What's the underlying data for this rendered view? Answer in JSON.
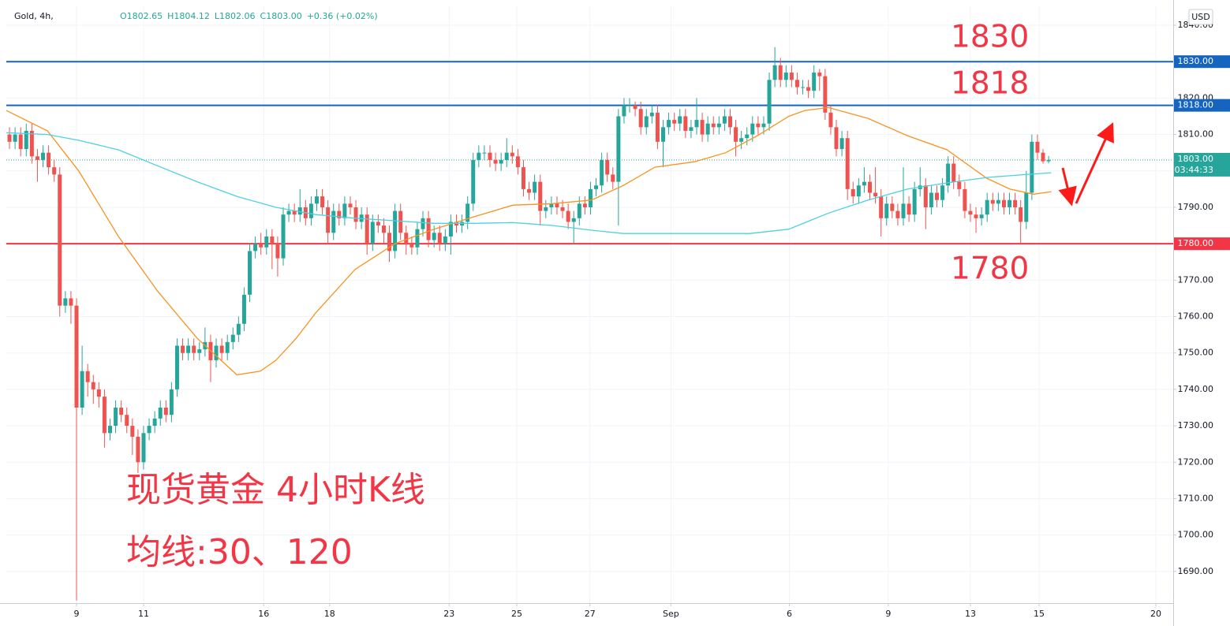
{
  "chart_data": {
    "type": "candlestick",
    "symbol": "Gold, 4h,",
    "ohlc_header": [
      "O1802.65",
      "H1804.12",
      "L1802.06",
      "C1803.00",
      "+0.36 (+0.02%)"
    ],
    "currency": "USD",
    "up_color": "#26a69a",
    "down_color": "#ef5350",
    "x": [
      -12,
      -11,
      -10,
      -9,
      -8,
      -7,
      -6,
      -5,
      -4,
      -3,
      -2,
      -1,
      0,
      1,
      2,
      3,
      4,
      5,
      6,
      7,
      8,
      9,
      10,
      11,
      12,
      13,
      14,
      15,
      16,
      17,
      18,
      19,
      20,
      21,
      22,
      23,
      24,
      25,
      26,
      27,
      28,
      29,
      30,
      31,
      32,
      33,
      34,
      35,
      36,
      37,
      38,
      39,
      40,
      41,
      42,
      43,
      44,
      45,
      46,
      47,
      48,
      49,
      50,
      51,
      52,
      53,
      54,
      55,
      56,
      57,
      58,
      59,
      60,
      61,
      62,
      63,
      64,
      65,
      66,
      67,
      68,
      69,
      70,
      71,
      72,
      73,
      74,
      75,
      76,
      77,
      78,
      79,
      80,
      81,
      82,
      83,
      84,
      85,
      86,
      87,
      88,
      89,
      90,
      91,
      92,
      93,
      94,
      95,
      96,
      97,
      98,
      99,
      100,
      101,
      102,
      103,
      104,
      105,
      106,
      107,
      108,
      109,
      110,
      111,
      112,
      113,
      114,
      115,
      116,
      117,
      118,
      119,
      120,
      121,
      122,
      123,
      124,
      125,
      126,
      127,
      128,
      129,
      130,
      131,
      132,
      133,
      134,
      135,
      136,
      137,
      138,
      139,
      140,
      141,
      142,
      143,
      144,
      145,
      146,
      147,
      148,
      149,
      150,
      151,
      152,
      153,
      154,
      155,
      156,
      157,
      158,
      159,
      160,
      161,
      162,
      163,
      164,
      165,
      166,
      167,
      168,
      169,
      170,
      171,
      172,
      173,
      174
    ],
    "open": [
      1810,
      1808,
      1810,
      1806,
      1811,
      1804,
      1803,
      1805,
      1801,
      1799,
      1763,
      1765,
      1763,
      1735,
      1745,
      1742,
      1740,
      1738,
      1728,
      1730,
      1735,
      1733,
      1730,
      1727,
      1720,
      1728,
      1730,
      1732,
      1735,
      1733,
      1740,
      1752,
      1750,
      1752,
      1750,
      1751,
      1753,
      1748,
      1752,
      1750,
      1753,
      1755,
      1758,
      1766,
      1778,
      1780,
      1779,
      1782,
      1780,
      1776,
      1788,
      1789,
      1788,
      1790,
      1787,
      1791,
      1793,
      1790,
      1783,
      1789,
      1787,
      1791,
      1790,
      1786,
      1788,
      1780,
      1786,
      1785,
      1783,
      1778,
      1789,
      1783,
      1780,
      1779,
      1784,
      1787,
      1781,
      1783,
      1780,
      1782,
      1786,
      1785,
      1786,
      1791,
      1803,
      1805,
      1805,
      1803,
      1802,
      1803,
      1805,
      1804,
      1801,
      1795,
      1794,
      1797,
      1789,
      1790,
      1791,
      1790,
      1789,
      1786,
      1787,
      1791,
      1790,
      1795,
      1796,
      1803,
      1799,
      1797,
      1815,
      1818,
      1818,
      1817,
      1812,
      1815,
      1816,
      1808,
      1812,
      1814,
      1813,
      1815,
      1811,
      1812,
      1814,
      1810,
      1813,
      1812,
      1813,
      1815,
      1812,
      1808,
      1809,
      1810,
      1813,
      1812,
      1813,
      1825,
      1829,
      1825,
      1827,
      1825,
      1823,
      1823,
      1822,
      1827,
      1826,
      1816,
      1812,
      1806,
      1809,
      1795,
      1793,
      1796,
      1797,
      1794,
      1793,
      1787,
      1791,
      1789,
      1787,
      1791,
      1788,
      1795,
      1796,
      1790,
      1794,
      1792,
      1796,
      1802,
      1797,
      1795,
      1789,
      1788,
      1787,
      1788,
      1792,
      1791,
      1792,
      1790,
      1792,
      1790,
      1786,
      1794,
      1808,
      1805,
      1802.65
    ],
    "high": [
      1812,
      1812,
      1812,
      1813,
      1813,
      1806,
      1807,
      1807,
      1803,
      1801,
      1767,
      1767,
      1765,
      1752,
      1747,
      1744,
      1742,
      1740,
      1732,
      1737,
      1737,
      1735,
      1732,
      1729,
      1730,
      1732,
      1734,
      1737,
      1737,
      1742,
      1754,
      1754,
      1754,
      1754,
      1753,
      1757,
      1755,
      1754,
      1754,
      1755,
      1757,
      1760,
      1768,
      1780,
      1782,
      1783,
      1784,
      1784,
      1782,
      1790,
      1791,
      1791,
      1795,
      1792,
      1793,
      1795,
      1795,
      1792,
      1791,
      1791,
      1793,
      1793,
      1792,
      1790,
      1790,
      1788,
      1788,
      1787,
      1785,
      1791,
      1791,
      1785,
      1782,
      1786,
      1789,
      1789,
      1785,
      1785,
      1784,
      1788,
      1788,
      1788,
      1793,
      1805,
      1807,
      1807,
      1807,
      1805,
      1805,
      1809,
      1807,
      1806,
      1803,
      1797,
      1799,
      1799,
      1792,
      1793,
      1793,
      1792,
      1791,
      1789,
      1793,
      1793,
      1797,
      1798,
      1805,
      1805,
      1801,
      1817,
      1820,
      1820,
      1819,
      1819,
      1817,
      1818,
      1818,
      1814,
      1816,
      1816,
      1817,
      1817,
      1814,
      1820,
      1816,
      1815,
      1815,
      1815,
      1817,
      1817,
      1814,
      1811,
      1812,
      1815,
      1815,
      1815,
      1827,
      1834,
      1831,
      1829,
      1829,
      1827,
      1825,
      1825,
      1829,
      1828,
      1828,
      1818,
      1814,
      1811,
      1811,
      1797,
      1798,
      1801,
      1799,
      1801,
      1795,
      1793,
      1793,
      1791,
      1801,
      1793,
      1797,
      1801,
      1798,
      1796,
      1796,
      1798,
      1804,
      1804,
      1799,
      1797,
      1791,
      1790,
      1790,
      1794,
      1794,
      1794,
      1794,
      1794,
      1794,
      1792,
      1800,
      1810,
      1810,
      1806,
      1804.12
    ],
    "low": [
      1806,
      1806,
      1804,
      1804,
      1802,
      1797,
      1801,
      1799,
      1797,
      1760,
      1761,
      1758,
      1682,
      1733,
      1738,
      1736,
      1735,
      1724,
      1726,
      1728,
      1731,
      1728,
      1722,
      1717,
      1718,
      1726,
      1728,
      1730,
      1731,
      1731,
      1738,
      1748,
      1748,
      1748,
      1748,
      1749,
      1742,
      1746,
      1748,
      1748,
      1751,
      1753,
      1756,
      1764,
      1776,
      1777,
      1777,
      1773,
      1771,
      1774,
      1786,
      1786,
      1786,
      1785,
      1785,
      1789,
      1788,
      1780,
      1781,
      1785,
      1785,
      1788,
      1784,
      1784,
      1777,
      1778,
      1783,
      1780,
      1775,
      1776,
      1781,
      1777,
      1777,
      1777,
      1782,
      1779,
      1779,
      1778,
      1778,
      1777,
      1783,
      1783,
      1784,
      1789,
      1801,
      1803,
      1801,
      1800,
      1800,
      1801,
      1802,
      1799,
      1793,
      1792,
      1792,
      1785,
      1787,
      1788,
      1788,
      1787,
      1784,
      1780,
      1785,
      1788,
      1788,
      1793,
      1794,
      1797,
      1795,
      1785,
      1813,
      1816,
      1815,
      1810,
      1810,
      1813,
      1806,
      1801,
      1810,
      1811,
      1811,
      1809,
      1809,
      1810,
      1808,
      1808,
      1810,
      1810,
      1811,
      1810,
      1804,
      1806,
      1807,
      1808,
      1810,
      1810,
      1811,
      1823,
      1823,
      1823,
      1823,
      1821,
      1821,
      1820,
      1820,
      1822,
      1814,
      1810,
      1804,
      1804,
      1792,
      1791,
      1791,
      1794,
      1792,
      1791,
      1782,
      1785,
      1787,
      1785,
      1785,
      1786,
      1786,
      1793,
      1784,
      1788,
      1790,
      1790,
      1794,
      1795,
      1793,
      1787,
      1786,
      1783,
      1785,
      1786,
      1789,
      1789,
      1788,
      1788,
      1788,
      1780,
      1784,
      1792,
      1803,
      1802,
      1802.06
    ],
    "close": [
      1808,
      1810,
      1806,
      1811,
      1804,
      1803,
      1805,
      1801,
      1799,
      1763,
      1765,
      1763,
      1735,
      1745,
      1742,
      1740,
      1738,
      1728,
      1730,
      1735,
      1733,
      1730,
      1727,
      1720,
      1728,
      1730,
      1732,
      1735,
      1733,
      1740,
      1752,
      1750,
      1752,
      1750,
      1751,
      1753,
      1748,
      1752,
      1750,
      1753,
      1755,
      1758,
      1766,
      1778,
      1780,
      1779,
      1782,
      1780,
      1776,
      1788,
      1789,
      1788,
      1790,
      1787,
      1791,
      1793,
      1790,
      1783,
      1789,
      1787,
      1791,
      1790,
      1786,
      1788,
      1780,
      1786,
      1785,
      1783,
      1778,
      1789,
      1783,
      1780,
      1779,
      1784,
      1787,
      1781,
      1783,
      1780,
      1782,
      1786,
      1785,
      1786,
      1791,
      1803,
      1805,
      1805,
      1803,
      1802,
      1803,
      1805,
      1804,
      1801,
      1795,
      1794,
      1797,
      1789,
      1790,
      1791,
      1790,
      1789,
      1786,
      1787,
      1791,
      1790,
      1795,
      1796,
      1803,
      1799,
      1797,
      1815,
      1818,
      1818,
      1817,
      1812,
      1815,
      1816,
      1808,
      1812,
      1814,
      1813,
      1815,
      1811,
      1812,
      1814,
      1810,
      1813,
      1812,
      1813,
      1815,
      1812,
      1808,
      1809,
      1810,
      1813,
      1812,
      1813,
      1825,
      1829,
      1825,
      1827,
      1825,
      1823,
      1823,
      1822,
      1827,
      1826,
      1816,
      1812,
      1806,
      1809,
      1795,
      1793,
      1796,
      1797,
      1794,
      1793,
      1787,
      1791,
      1789,
      1787,
      1791,
      1788,
      1795,
      1796,
      1790,
      1794,
      1792,
      1796,
      1802,
      1797,
      1795,
      1789,
      1788,
      1787,
      1788,
      1792,
      1791,
      1792,
      1790,
      1792,
      1790,
      1786,
      1794,
      1808,
      1805,
      1802.64,
      1803
    ],
    "lines": [
      {
        "color": "#f7931e",
        "x": [
          -12.6,
          -5.2,
          0.4,
          7.5,
          14.5,
          21.6,
          28.7,
          32.9,
          35.7,
          39.3,
          42.8,
          49.9,
          57,
          64,
          71.1,
          78.1,
          85.2,
          92.2,
          97.9,
          103.5,
          110.6,
          116.2,
          121.9,
          127.5,
          130.4,
          134.6,
          141.7,
          148.7,
          155.8,
          162.9,
          167.1,
          171.3,
          174.5
        ],
        "values": [
          1816.6,
          1811,
          1800,
          1782,
          1767,
          1754,
          1744,
          1745,
          1748,
          1754,
          1761,
          1773,
          1780,
          1784,
          1787.4,
          1790.6,
          1791,
          1792,
          1796,
          1801,
          1802.5,
          1805,
          1809.7,
          1815,
          1816.6,
          1817.4,
          1814.4,
          1809.7,
          1805.8,
          1798,
          1795,
          1793.6,
          1794.3
        ]
      },
      {
        "color": "#4dd0e1",
        "x": [
          -12.6,
          -5.2,
          0.4,
          7.5,
          14.5,
          21.6,
          28.7,
          35.7,
          42.8,
          49.9,
          57,
          64,
          71.1,
          78.1,
          85.2,
          92.2,
          97.9,
          106.4,
          113.4,
          120.5,
          127.5,
          134.6,
          141.7,
          148.7,
          155.8,
          162.9,
          169.9,
          174.5
        ],
        "values": [
          1810.5,
          1810,
          1808.4,
          1805.8,
          1801.4,
          1797,
          1793,
          1790,
          1788,
          1787,
          1786.3,
          1785.6,
          1785.6,
          1785.8,
          1785,
          1783.7,
          1782.8,
          1782.8,
          1782.8,
          1782.8,
          1784,
          1788.4,
          1792,
          1795,
          1796.7,
          1798.2,
          1799,
          1799.5
        ]
      }
    ],
    "hlines": [
      {
        "value": 1830,
        "label": "1830.00",
        "color": "#1565c0"
      },
      {
        "value": 1818,
        "label": "1818.00",
        "color": "#1565c0"
      },
      {
        "value": 1780,
        "label": "1780.00",
        "color": "#f23645"
      }
    ],
    "current_price": {
      "value": 1803,
      "label": "1803.00",
      "countdown": "03:44:33",
      "color": "#26a69a"
    },
    "annotations": [
      "1830",
      "1818",
      "1780",
      "现货黄金 4小时K线",
      "均线:30、120"
    ],
    "xlim": [
      -12.57,
      196.3
    ],
    "ylim": [
      1681.3,
      1845.2
    ],
    "xticks": [
      {
        "value": 0,
        "label": "9"
      },
      {
        "value": 12,
        "label": "11"
      },
      {
        "value": 33.5,
        "label": "16"
      },
      {
        "value": 45.3,
        "label": "18"
      },
      {
        "value": 66.7,
        "label": "23"
      },
      {
        "value": 78.8,
        "label": "25"
      },
      {
        "value": 91.9,
        "label": "27"
      },
      {
        "value": 106.4,
        "label": "Sep"
      },
      {
        "value": 127.6,
        "label": "6"
      },
      {
        "value": 145.3,
        "label": "9"
      },
      {
        "value": 160,
        "label": "13"
      },
      {
        "value": 172.3,
        "label": "15"
      },
      {
        "value": 193.2,
        "label": "20"
      }
    ],
    "yticks": [
      {
        "value": 1690,
        "label": "1690.00"
      },
      {
        "value": 1700,
        "label": "1700.00"
      },
      {
        "value": 1710,
        "label": "1710.00"
      },
      {
        "value": 1720,
        "label": "1720.00"
      },
      {
        "value": 1730,
        "label": "1730.00"
      },
      {
        "value": 1740,
        "label": "1740.00"
      },
      {
        "value": 1750,
        "label": "1750.00"
      },
      {
        "value": 1760,
        "label": "1760.00"
      },
      {
        "value": 1770,
        "label": "1770.00"
      },
      {
        "value": 1780,
        "label": "1780.00"
      },
      {
        "value": 1790,
        "label": "1790.00"
      },
      {
        "value": 1800,
        "label": "1800.00"
      },
      {
        "value": 1810,
        "label": "1810.00"
      },
      {
        "value": 1820,
        "label": "1820.00"
      },
      {
        "value": 1830,
        "label": "1830.00"
      },
      {
        "value": 1840,
        "label": "1840.00"
      }
    ],
    "grid": true
  }
}
